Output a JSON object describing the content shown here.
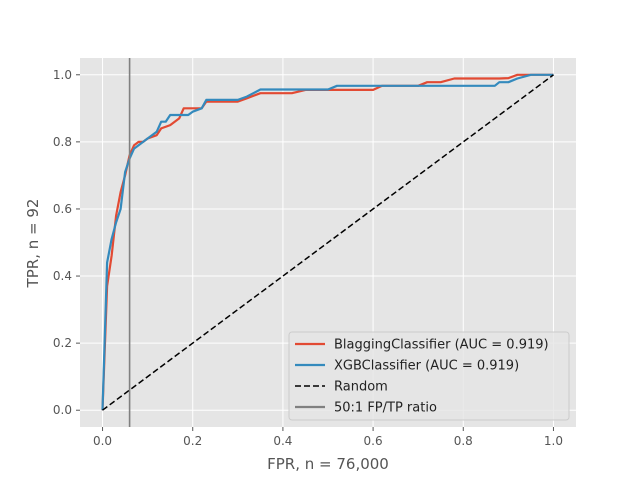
{
  "chart_data": {
    "type": "line",
    "style": "ggplot",
    "title": "",
    "xlabel": "FPR, n = 76,000",
    "ylabel": "TPR, n = 92",
    "xlim": [
      -0.05,
      1.05
    ],
    "ylim": [
      -0.05,
      1.05
    ],
    "xticks": [
      0.0,
      0.2,
      0.4,
      0.6,
      0.8,
      1.0
    ],
    "yticks": [
      0.0,
      0.2,
      0.4,
      0.6,
      0.8,
      1.0
    ],
    "xtick_labels": [
      "0.0",
      "0.2",
      "0.4",
      "0.6",
      "0.8",
      "1.0"
    ],
    "ytick_labels": [
      "0.0",
      "0.2",
      "0.4",
      "0.6",
      "0.8",
      "1.0"
    ],
    "grid": true,
    "legend_position": "lower-right",
    "series": [
      {
        "name": "BlaggingClassifier (AUC = 0.919)",
        "color": "#E24A33",
        "style": "solid",
        "x": [
          0.0,
          0.01,
          0.02,
          0.03,
          0.04,
          0.05,
          0.06,
          0.07,
          0.08,
          0.09,
          0.1,
          0.12,
          0.13,
          0.15,
          0.17,
          0.18,
          0.2,
          0.22,
          0.23,
          0.25,
          0.3,
          0.32,
          0.35,
          0.42,
          0.45,
          0.5,
          0.6,
          0.62,
          0.7,
          0.72,
          0.75,
          0.78,
          0.8,
          0.88,
          0.9,
          0.92,
          0.95,
          1.0
        ],
        "y": [
          0.0,
          0.37,
          0.46,
          0.58,
          0.65,
          0.7,
          0.76,
          0.79,
          0.8,
          0.8,
          0.81,
          0.82,
          0.84,
          0.85,
          0.87,
          0.9,
          0.9,
          0.9,
          0.92,
          0.92,
          0.92,
          0.93,
          0.945,
          0.945,
          0.955,
          0.955,
          0.955,
          0.967,
          0.967,
          0.978,
          0.978,
          0.989,
          0.989,
          0.989,
          0.99,
          1.0,
          1.0,
          1.0
        ]
      },
      {
        "name": "XGBClassifier (AUC = 0.919)",
        "color": "#348ABD",
        "style": "solid",
        "x": [
          0.0,
          0.01,
          0.02,
          0.03,
          0.04,
          0.05,
          0.06,
          0.07,
          0.08,
          0.1,
          0.12,
          0.13,
          0.14,
          0.15,
          0.17,
          0.19,
          0.2,
          0.22,
          0.23,
          0.3,
          0.32,
          0.35,
          0.4,
          0.45,
          0.5,
          0.52,
          0.6,
          0.65,
          0.7,
          0.8,
          0.87,
          0.88,
          0.9,
          0.92,
          0.95,
          1.0
        ],
        "y": [
          0.0,
          0.44,
          0.51,
          0.56,
          0.6,
          0.71,
          0.75,
          0.78,
          0.79,
          0.81,
          0.83,
          0.86,
          0.86,
          0.88,
          0.88,
          0.88,
          0.89,
          0.9,
          0.925,
          0.925,
          0.935,
          0.956,
          0.956,
          0.956,
          0.956,
          0.967,
          0.967,
          0.967,
          0.967,
          0.967,
          0.967,
          0.978,
          0.978,
          0.989,
          1.0,
          1.0
        ]
      },
      {
        "name": "Random",
        "color": "#000000",
        "style": "dashed",
        "x": [
          0.0,
          1.0
        ],
        "y": [
          0.0,
          1.0
        ]
      }
    ],
    "vlines": [
      {
        "name": "50:1 FP/TP ratio",
        "x": 0.06,
        "color": "#808080"
      }
    ]
  }
}
